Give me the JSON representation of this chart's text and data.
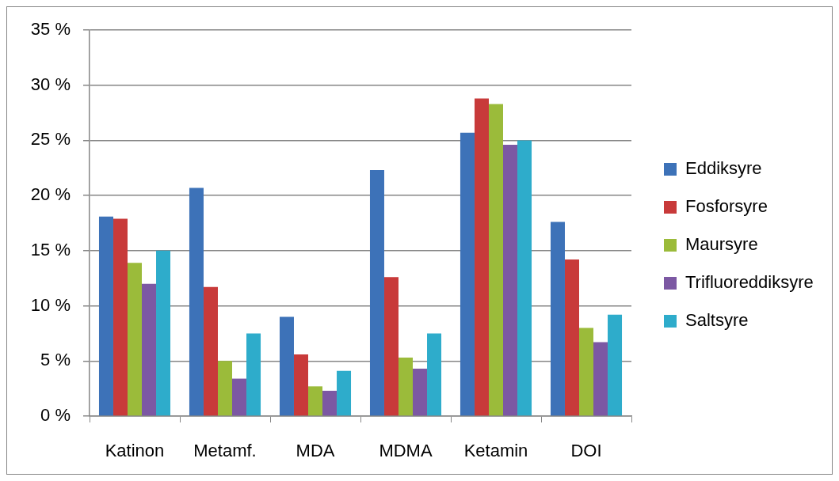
{
  "chart_data": {
    "type": "bar",
    "categories": [
      "Katinon",
      "Metamf.",
      "MDA",
      "MDMA",
      "Ketamin",
      "DOI"
    ],
    "series": [
      {
        "name": "Eddiksyre",
        "color": "#3d72b8",
        "values": [
          18.1,
          20.7,
          9.0,
          22.3,
          25.7,
          17.6
        ]
      },
      {
        "name": "Fosforsyre",
        "color": "#c83a3a",
        "values": [
          17.9,
          11.7,
          5.6,
          12.6,
          28.8,
          14.2
        ]
      },
      {
        "name": "Maursyre",
        "color": "#9bbb3a",
        "values": [
          13.9,
          5.0,
          2.7,
          5.3,
          28.3,
          8.0
        ]
      },
      {
        "name": "Trifluoreddiksyre",
        "color": "#7c58a3",
        "values": [
          12.0,
          3.4,
          2.3,
          4.3,
          24.6,
          6.7
        ]
      },
      {
        "name": "Saltsyre",
        "color": "#2eaccb",
        "values": [
          15.0,
          7.5,
          4.1,
          7.5,
          25.0,
          9.2
        ]
      }
    ],
    "ylim": [
      0,
      35
    ],
    "yticks": [
      {
        "value": 0,
        "label": "0 %"
      },
      {
        "value": 5,
        "label": "5 %"
      },
      {
        "value": 10,
        "label": "10 %"
      },
      {
        "value": 15,
        "label": "15 %"
      },
      {
        "value": 20,
        "label": "20 %"
      },
      {
        "value": 25,
        "label": "25 %"
      },
      {
        "value": 30,
        "label": "30 %"
      },
      {
        "value": 35,
        "label": "35 %"
      }
    ],
    "grid": "y",
    "legend": "right"
  }
}
